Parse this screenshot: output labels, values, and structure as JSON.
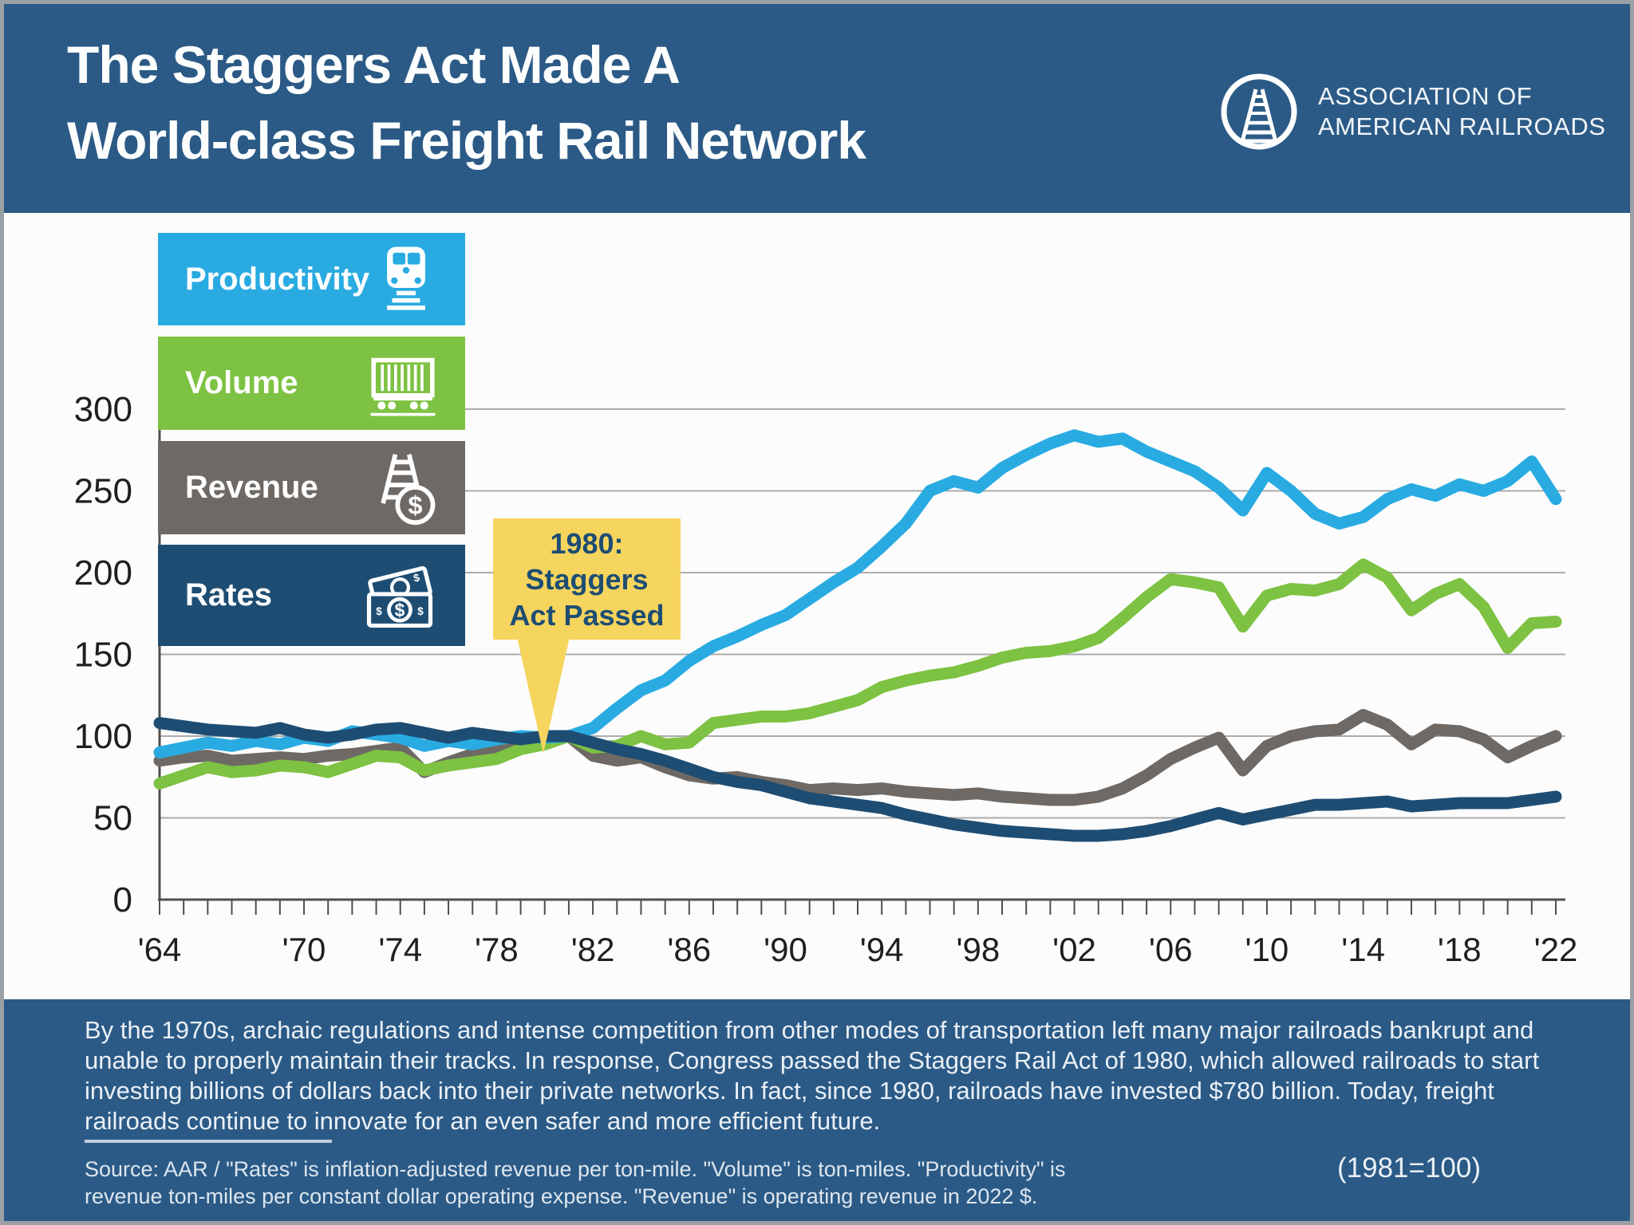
{
  "header": {
    "title_line1": "The Staggers Act Made A",
    "title_line2": "World-class Freight Rail Network",
    "logo_line1": "ASSOCIATION OF",
    "logo_line2": "AMERICAN RAILROADS"
  },
  "chart": {
    "legend": [
      {
        "label": "Productivity",
        "color": "#29ABE2",
        "icon": "locomotive-icon"
      },
      {
        "label": "Volume",
        "color": "#7DC242",
        "icon": "freight-car-icon"
      },
      {
        "label": "Revenue",
        "color": "#6E6965",
        "icon": "track-dollar-icon"
      },
      {
        "label": "Rates",
        "color": "#1E4D73",
        "icon": "money-bills-icon"
      }
    ],
    "callout": {
      "line1": "1980:",
      "line2": "Staggers",
      "line3": "Act Passed",
      "year": 1980,
      "bg": "#F6D55E",
      "text_color": "#1E4D73"
    }
  },
  "chart_data": {
    "type": "line",
    "title": "The Staggers Act Made A World-class Freight Rail Network",
    "index_note": "(1981=100)",
    "grid": true,
    "legend_position": "top-left",
    "ylim": [
      0,
      300
    ],
    "yticks": [
      0,
      50,
      100,
      150,
      200,
      250,
      300
    ],
    "xtick_labels": [
      {
        "year": 1964,
        "label": "'64"
      },
      {
        "year": 1970,
        "label": "'70"
      },
      {
        "year": 1974,
        "label": "'74"
      },
      {
        "year": 1978,
        "label": "'78"
      },
      {
        "year": 1982,
        "label": "'82"
      },
      {
        "year": 1986,
        "label": "'86"
      },
      {
        "year": 1990,
        "label": "'90"
      },
      {
        "year": 1994,
        "label": "'94"
      },
      {
        "year": 1998,
        "label": "'98"
      },
      {
        "year": 2002,
        "label": "'02"
      },
      {
        "year": 2006,
        "label": "'06"
      },
      {
        "year": 2010,
        "label": "'10"
      },
      {
        "year": 2014,
        "label": "'14"
      },
      {
        "year": 2018,
        "label": "'18"
      },
      {
        "year": 2022,
        "label": "'22"
      }
    ],
    "x": [
      1964,
      1965,
      1966,
      1967,
      1968,
      1969,
      1970,
      1971,
      1972,
      1973,
      1974,
      1975,
      1976,
      1977,
      1978,
      1979,
      1980,
      1981,
      1982,
      1983,
      1984,
      1985,
      1986,
      1987,
      1988,
      1989,
      1990,
      1991,
      1992,
      1993,
      1994,
      1995,
      1996,
      1997,
      1998,
      1999,
      2000,
      2001,
      2002,
      2003,
      2004,
      2005,
      2006,
      2007,
      2008,
      2009,
      2010,
      2011,
      2012,
      2013,
      2014,
      2015,
      2016,
      2017,
      2018,
      2019,
      2020,
      2021,
      2022
    ],
    "series": [
      {
        "id": "productivity",
        "name": "Productivity",
        "color": "#29ABE2",
        "values": [
          90,
          93,
          96,
          94,
          97,
          95,
          99,
          97,
          103,
          101,
          99,
          94,
          97,
          95,
          98,
          100,
          99,
          100,
          105,
          117,
          128,
          134,
          146,
          155,
          161,
          168,
          174,
          184,
          194,
          203,
          216,
          230,
          250,
          256,
          252,
          264,
          272,
          279,
          284,
          280,
          282,
          274,
          268,
          262,
          252,
          238,
          261,
          250,
          236,
          230,
          234,
          245,
          251,
          247,
          254,
          250,
          256,
          268,
          245
        ]
      },
      {
        "id": "volume",
        "name": "Volume",
        "color": "#7DC242",
        "values": [
          71,
          76,
          81,
          78,
          79,
          82,
          81,
          78,
          83,
          88,
          87,
          79,
          82,
          84,
          86,
          92,
          95,
          100,
          93,
          94,
          100,
          95,
          96,
          108,
          110,
          112,
          112,
          114,
          118,
          122,
          130,
          134,
          137,
          139,
          143,
          148,
          151,
          152,
          155,
          160,
          172,
          185,
          196,
          194,
          191,
          167,
          186,
          190,
          189,
          193,
          205,
          197,
          177,
          187,
          193,
          179,
          154,
          169,
          170
        ]
      },
      {
        "id": "revenue",
        "name": "Revenue",
        "color": "#6E6965",
        "values": [
          85,
          87,
          88,
          85,
          86,
          87,
          86,
          88,
          89,
          91,
          93,
          78,
          84,
          89,
          92,
          97,
          99,
          100,
          88,
          85,
          87,
          81,
          76,
          74,
          75,
          72,
          70,
          67,
          68,
          67,
          68,
          66,
          65,
          64,
          65,
          63,
          62,
          61,
          61,
          63,
          68,
          76,
          86,
          93,
          99,
          79,
          94,
          100,
          103,
          104,
          113,
          107,
          95,
          104,
          103,
          98,
          87,
          94,
          100
        ]
      },
      {
        "id": "rates",
        "name": "Rates",
        "color": "#1E4D73",
        "values": [
          108,
          106,
          104,
          103,
          102,
          105,
          101,
          99,
          101,
          104,
          105,
          102,
          99,
          102,
          100,
          98,
          100,
          100,
          96,
          92,
          89,
          85,
          80,
          75,
          72,
          70,
          66,
          62,
          60,
          58,
          56,
          52,
          49,
          46,
          44,
          42,
          41,
          40,
          39,
          39,
          40,
          42,
          45,
          49,
          53,
          49,
          52,
          55,
          58,
          58,
          59,
          60,
          57,
          58,
          59,
          59,
          59,
          61,
          63
        ]
      }
    ]
  },
  "footer": {
    "paragraph": "By the 1970s, archaic regulations and intense competition from other modes of transportation left many major railroads bankrupt and unable to properly maintain their tracks. In response, Congress passed the Staggers Rail Act of 1980, which allowed railroads to start investing billions of dollars back into their private networks. In fact, since 1980, railroads have invested $780 billion. Today, freight railroads continue to innovate for an even safer and more efficient future.",
    "source_line1": "Source: AAR / \"Rates\" is inflation-adjusted revenue per ton-mile. \"Volume\" is ton-miles. \"Productivity\" is",
    "source_line2": "revenue ton-miles per constant dollar operating expense. \"Revenue\" is operating revenue in 2022 $.",
    "index_note": "(1981=100)"
  },
  "colors": {
    "header_bg": "#2B5A86",
    "footer_bg": "#2B5A86",
    "chart_bg": "#FCFCFC",
    "grid": "#ABABAB",
    "axis": "#4F4F4F",
    "tick_label": "#1F1F1F",
    "frame": "#9BA0A5"
  }
}
